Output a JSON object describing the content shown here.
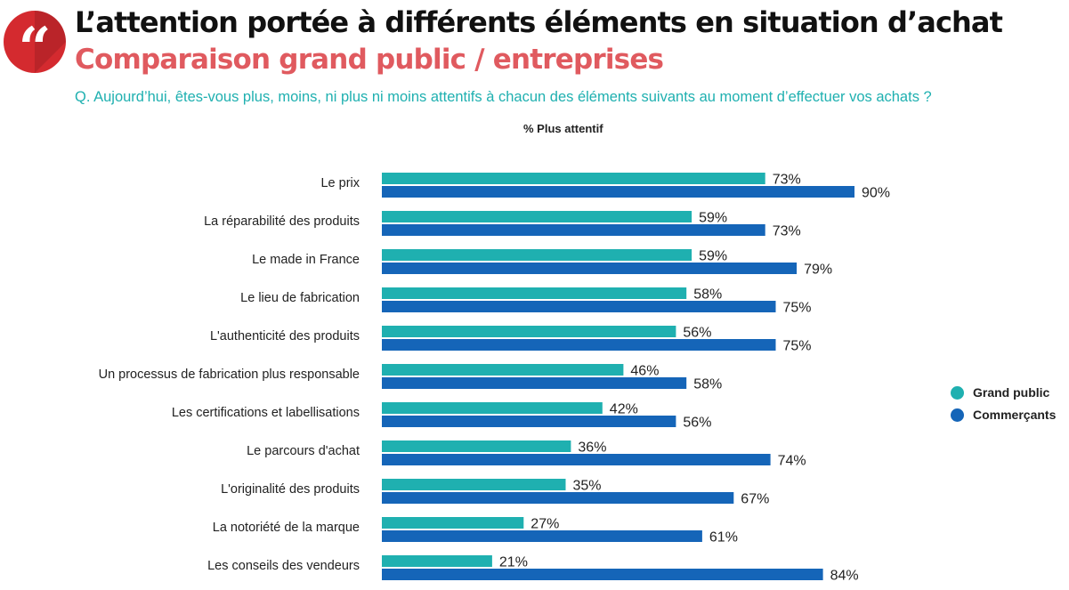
{
  "header": {
    "title": "L’attention portée à différents éléments en situation d’achat",
    "subtitle": "Comparaison grand public / entreprises",
    "question": "Q. Aujourd’hui, êtes-vous plus, moins, ni plus ni moins attentifs à chacun des éléments suivants au moment d’effectuer vos achats ?",
    "badge_icon": "quote-icon",
    "badge_glyph": "“",
    "badge_color": "#d42a2f"
  },
  "chart_data": {
    "type": "bar",
    "orientation": "horizontal",
    "measure_label": "% Plus attentif",
    "value_suffix": "%",
    "xlim": [
      0,
      100
    ],
    "categories": [
      "Le prix",
      "La réparabilité des produits",
      "Le made in France",
      "Le lieu de fabrication",
      "L'authenticité des produits",
      "Un processus de fabrication plus responsable",
      "Les certifications et labellisations",
      "Le parcours d'achat",
      "L'originalité des produits",
      "La notoriété de la marque",
      "Les conseils des vendeurs"
    ],
    "series": [
      {
        "name": "Grand public",
        "color": "#1fb0b0",
        "values": [
          73,
          59,
          59,
          58,
          56,
          46,
          42,
          36,
          35,
          27,
          21
        ]
      },
      {
        "name": "Commerçants",
        "color": "#1565b8",
        "values": [
          90,
          73,
          79,
          75,
          75,
          58,
          56,
          74,
          67,
          61,
          84
        ]
      }
    ],
    "legend_position": "right",
    "grid": false
  }
}
